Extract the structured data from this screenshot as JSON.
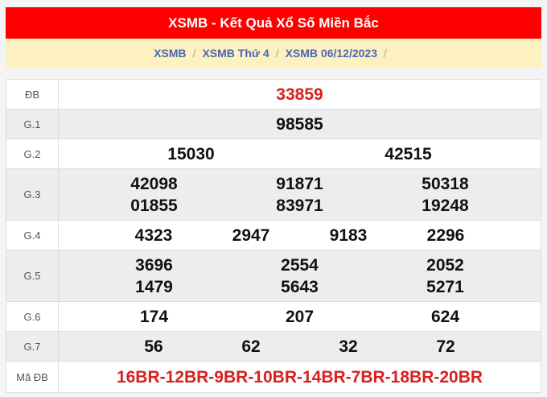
{
  "header": {
    "title": "XSMB - Kết Quả Xổ Số Miền Bắc"
  },
  "breadcrumb": [
    "XSMB",
    "XSMB Thứ 4",
    "XSMB 06/12/2023"
  ],
  "rows": [
    {
      "label": "ĐB",
      "values": [
        "33859"
      ]
    },
    {
      "label": "G.1",
      "values": [
        "98585"
      ]
    },
    {
      "label": "G.2",
      "values": [
        "15030",
        "42515"
      ]
    },
    {
      "label": "G.3",
      "values": [
        "42098",
        "91871",
        "50318",
        "01855",
        "83971",
        "19248"
      ]
    },
    {
      "label": "G.4",
      "values": [
        "4323",
        "2947",
        "9183",
        "2296"
      ]
    },
    {
      "label": "G.5",
      "values": [
        "3696",
        "2554",
        "2052",
        "1479",
        "5643",
        "5271"
      ]
    },
    {
      "label": "G.6",
      "values": [
        "174",
        "207",
        "624"
      ]
    },
    {
      "label": "G.7",
      "values": [
        "56",
        "62",
        "32",
        "72"
      ]
    },
    {
      "label": "Mã ĐB",
      "values": [
        "16BR-12BR-9BR-10BR-14BR-7BR-18BR-20BR"
      ]
    }
  ],
  "colors": {
    "header": "#ff0000",
    "breadcrumb_bg": "#fdf1c0",
    "special": "#d9201f"
  }
}
